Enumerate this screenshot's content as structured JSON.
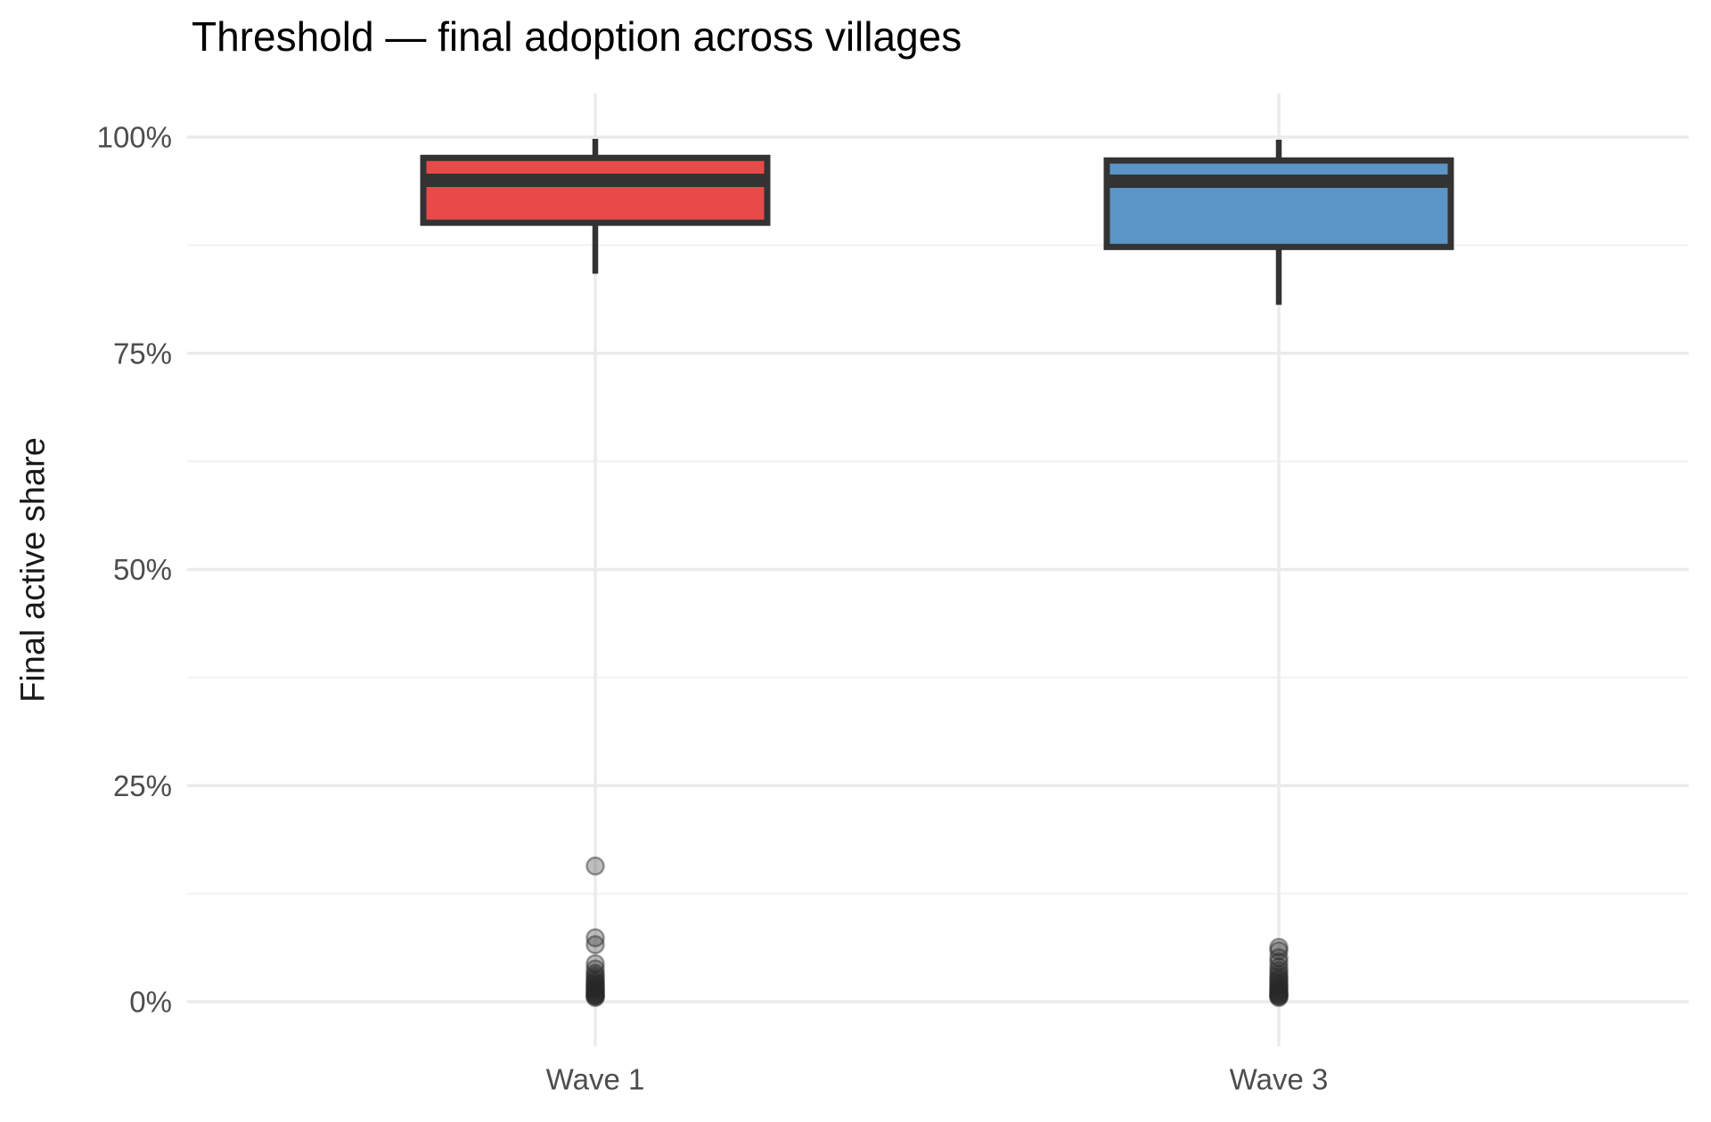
{
  "title": "Threshold — final adoption across villages",
  "colors": {
    "wave1_fill": "#E84A4A",
    "wave3_fill": "#5B94C7",
    "box_stroke": "#333333",
    "grid_major": "#EBEBEB",
    "grid_minor": "#F3F3F3",
    "tick_text": "#4D4D4D",
    "outlier": "#282828"
  },
  "chart_data": {
    "type": "box",
    "title": "Threshold — final adoption across villages",
    "xlabel": "",
    "ylabel": "Final active share",
    "categories": [
      "Wave 1",
      "Wave 3"
    ],
    "y_ticks": [
      {
        "value": 0,
        "label": "0%"
      },
      {
        "value": 25,
        "label": "25%"
      },
      {
        "value": 50,
        "label": "50%"
      },
      {
        "value": 75,
        "label": "75%"
      },
      {
        "value": 100,
        "label": "100%"
      }
    ],
    "y_minor_ticks": [
      12.5,
      37.5,
      62.5,
      87.5
    ],
    "ylim": [
      -5,
      105
    ],
    "grid": "horizontal major+minor, vertical major at categories",
    "legend": "none",
    "series": [
      {
        "name": "Wave 1",
        "color": "#E84A4A",
        "whisker_low": 84.2,
        "q1": 90.1,
        "median": 95.0,
        "q3": 97.6,
        "whisker_high": 99.8,
        "outliers": [
          15.7,
          7.4,
          6.6,
          4.4,
          3.8,
          3.3,
          3.0,
          2.7,
          2.4,
          2.2,
          2.0,
          1.8,
          1.6,
          1.5,
          1.3,
          1.2,
          1.0,
          0.9,
          0.8,
          0.7,
          0.6,
          0.5
        ]
      },
      {
        "name": "Wave 3",
        "color": "#5B94C7",
        "whisker_low": 80.6,
        "q1": 87.3,
        "median": 94.9,
        "q3": 97.3,
        "whisker_high": 99.7,
        "outliers": [
          6.3,
          5.9,
          5.1,
          4.6,
          4.0,
          3.6,
          3.2,
          2.9,
          2.6,
          2.4,
          2.1,
          1.9,
          1.7,
          1.5,
          1.3,
          1.2,
          1.0,
          0.9,
          0.8,
          0.7,
          0.6,
          0.5
        ]
      }
    ]
  }
}
